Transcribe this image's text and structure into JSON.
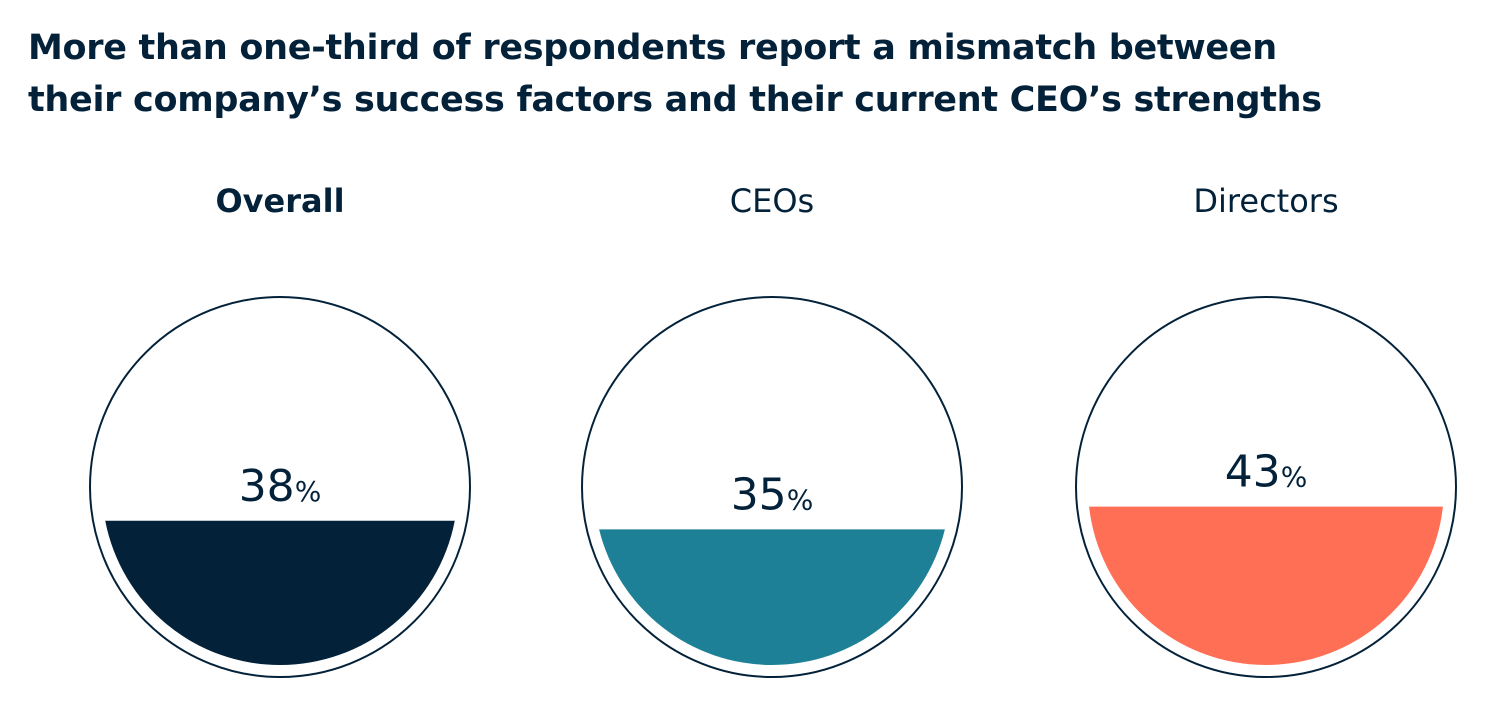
{
  "chart_data": {
    "type": "fill",
    "title": "More than one-third of respondents report a mismatch between their company’s success factors and their current CEO’s strengths",
    "categories": [
      "Overall",
      "CEOs",
      "Directors"
    ],
    "values": [
      38,
      35,
      43
    ],
    "value_labels": [
      "38%",
      "35%",
      "43%"
    ],
    "colors": [
      "#03223a",
      "#1e8096",
      "#ff6f55"
    ]
  }
}
